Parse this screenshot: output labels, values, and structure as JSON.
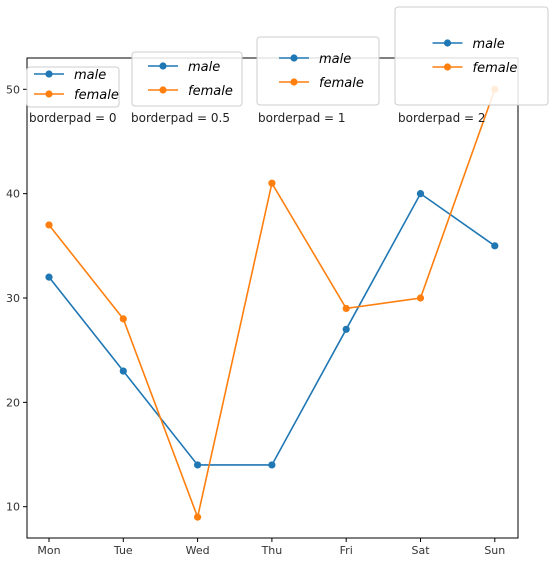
{
  "chart_data": {
    "type": "line",
    "categories": [
      "Mon",
      "Tue",
      "Wed",
      "Thu",
      "Fri",
      "Sat",
      "Sun"
    ],
    "ylim": [
      7,
      53
    ],
    "yticks": [
      10,
      20,
      30,
      40,
      50
    ],
    "grid": false,
    "series": [
      {
        "name": "male",
        "color": "#1f77b4",
        "values": [
          32,
          23,
          14,
          14,
          27,
          40,
          35
        ]
      },
      {
        "name": "female",
        "color": "#ff7f0e",
        "values": [
          37,
          28,
          9,
          41,
          29,
          30,
          50
        ]
      }
    ],
    "legends": [
      {
        "caption": "borderpad = 0",
        "entries": [
          "male",
          "female"
        ]
      },
      {
        "caption": "borderpad = 0.5",
        "entries": [
          "male",
          "female"
        ]
      },
      {
        "caption": "borderpad = 1",
        "entries": [
          "male",
          "female"
        ]
      },
      {
        "caption": "borderpad = 2",
        "entries": [
          "male",
          "female"
        ]
      }
    ]
  }
}
